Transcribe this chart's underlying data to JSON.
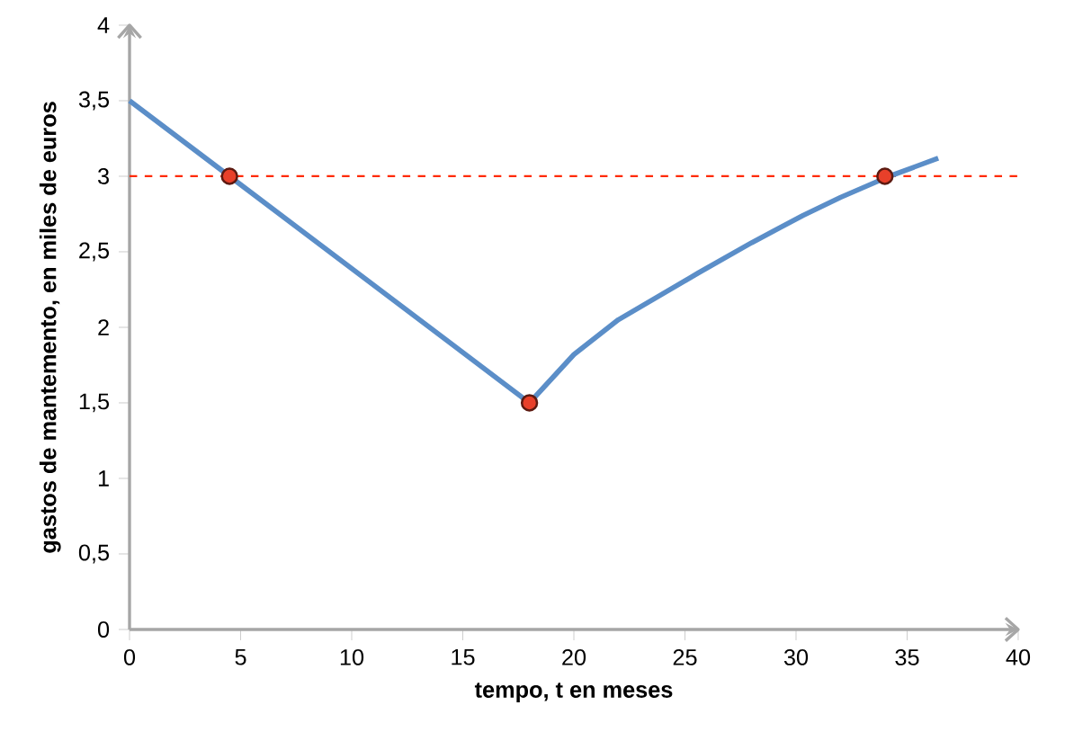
{
  "chart_data": {
    "type": "line",
    "xlabel": "tempo, t en meses",
    "ylabel": "gastos de mantemento, en miles de euros",
    "xlim": [
      0,
      40
    ],
    "ylim": [
      0,
      4
    ],
    "xticks": [
      0,
      5,
      10,
      15,
      20,
      25,
      30,
      35,
      40
    ],
    "yticks": [
      0,
      {
        "value": 0.5,
        "label": "0,5"
      },
      1,
      {
        "value": 1.5,
        "label": "1,5"
      },
      2,
      {
        "value": 2.5,
        "label": "2,5"
      },
      3,
      {
        "value": 3.5,
        "label": "3,5"
      },
      4
    ],
    "grid": false,
    "series": [
      {
        "color": "#5b8ec8",
        "marker": "none",
        "line_style": "solid",
        "x": [
          0,
          18,
          20,
          22,
          25.6,
          28,
          30.3,
          32,
          34.2,
          36.4
        ],
        "values": [
          3.5,
          1.5,
          1.82,
          2.05,
          2.36,
          2.56,
          2.74,
          2.86,
          3.0,
          3.12
        ]
      },
      {
        "type": "scatter",
        "color": "#e8402a",
        "marker": "circle",
        "x": [
          4.5,
          18,
          34
        ],
        "values": [
          3,
          1.5,
          3
        ]
      }
    ],
    "ref_lines": [
      {
        "axis": "y",
        "value": 3,
        "color": "#ff2a00",
        "line_style": "dashed"
      }
    ]
  }
}
